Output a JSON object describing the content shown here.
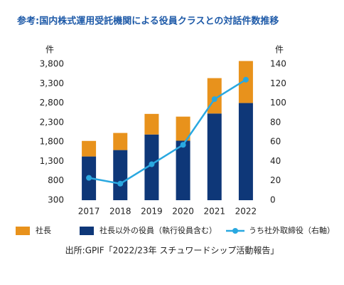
{
  "chart_data": {
    "type": "bar",
    "title": "参考:国内株式運用受託機関による役員クラスとの対話件数推移",
    "y_label": "件",
    "y2_label": "件",
    "categories": [
      "2017",
      "2018",
      "2019",
      "2020",
      "2021",
      "2022"
    ],
    "series": [
      {
        "name": "社長",
        "color": "#e8921c",
        "values": [
          400,
          440,
          530,
          620,
          910,
          1080
        ]
      },
      {
        "name": "社長以外の役員（執行役員含む）",
        "color": "#0e3778",
        "values": [
          1125,
          1290,
          1690,
          1530,
          2230,
          2500
        ]
      },
      {
        "name": "うち社外取締役（右軸）",
        "type": "line",
        "axis": "y2",
        "color": "#29a8e0",
        "values": [
          23,
          17,
          37,
          57,
          104,
          124
        ]
      }
    ],
    "ylim": [
      300,
      3800
    ],
    "yticks": [
      {
        "value": 300,
        "label": "300"
      },
      {
        "value": 800,
        "label": "800"
      },
      {
        "value": 1300,
        "label": "1,300"
      },
      {
        "value": 1800,
        "label": "1,800"
      },
      {
        "value": 2300,
        "label": "2,300"
      },
      {
        "value": 2800,
        "label": "2,800"
      },
      {
        "value": 3300,
        "label": "3,300"
      },
      {
        "value": 3800,
        "label": "3,800"
      }
    ],
    "y2lim": [
      0,
      140
    ],
    "y2ticks": [
      0,
      20,
      40,
      60,
      80,
      100,
      120,
      140
    ],
    "source": "出所:GPIF「2022/23年 スチュワードシップ活動報告」"
  }
}
